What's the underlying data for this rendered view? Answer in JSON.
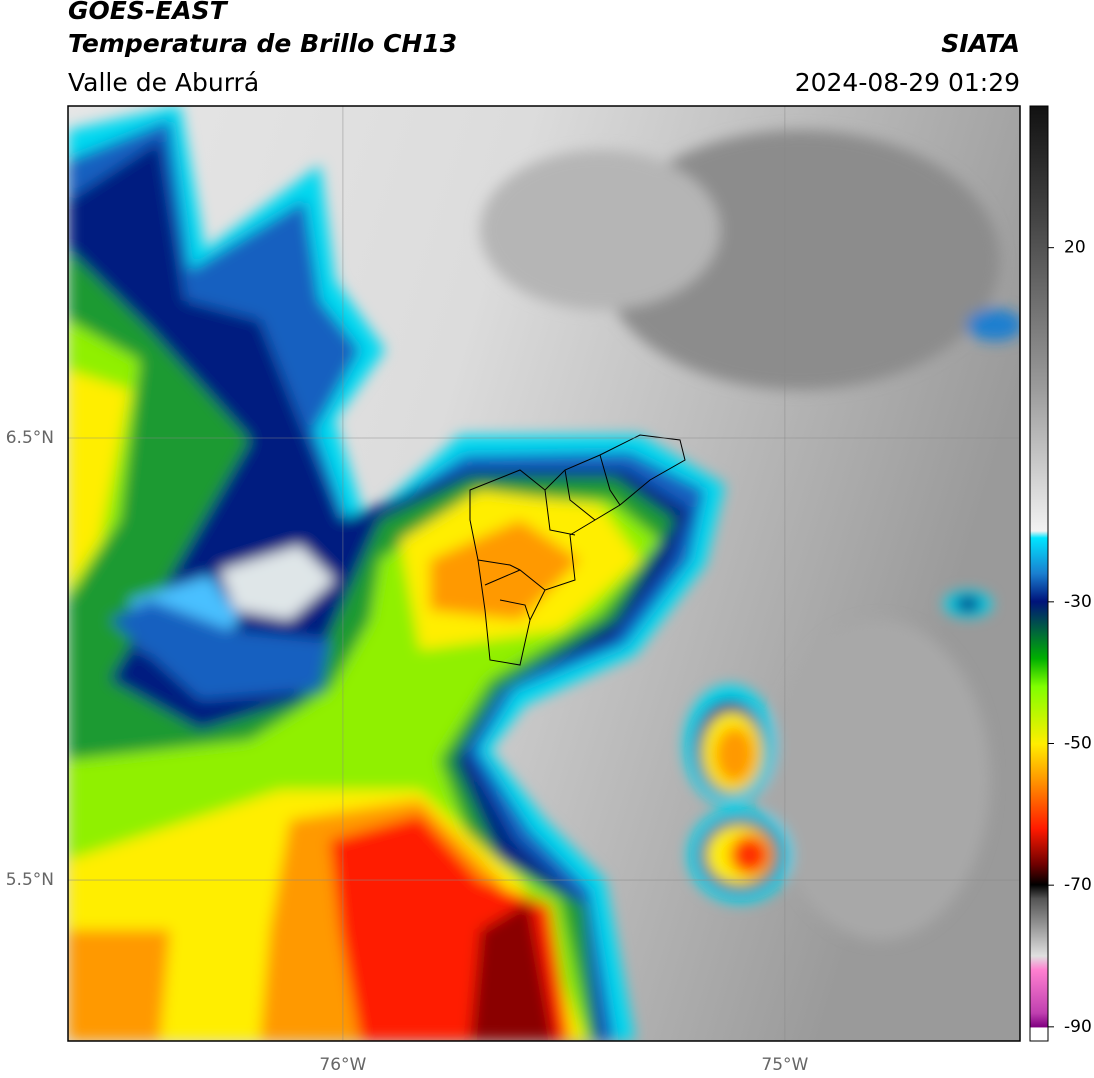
{
  "header": {
    "satellite": "GOES-EAST",
    "product": "Temperatura de Brillo CH13",
    "region": "Valle de Aburrá",
    "source": "SIATA",
    "datetime": "2024-08-29 01:29"
  },
  "chart_data": {
    "type": "map",
    "xlim": [
      -76.622,
      -74.468
    ],
    "ylim": [
      5.136,
      7.251
    ],
    "xticks": [
      {
        "value": -76,
        "label": "76°W"
      },
      {
        "value": -75,
        "label": "75°W"
      }
    ],
    "yticks": [
      {
        "value": 5.5,
        "label": "5.5°N"
      },
      {
        "value": 6.5,
        "label": "6.5°N"
      }
    ],
    "grid": true,
    "colorbar": {
      "lim": [
        -92,
        40
      ],
      "ticks": [
        -90,
        -70,
        -50,
        -30,
        20
      ]
    }
  }
}
